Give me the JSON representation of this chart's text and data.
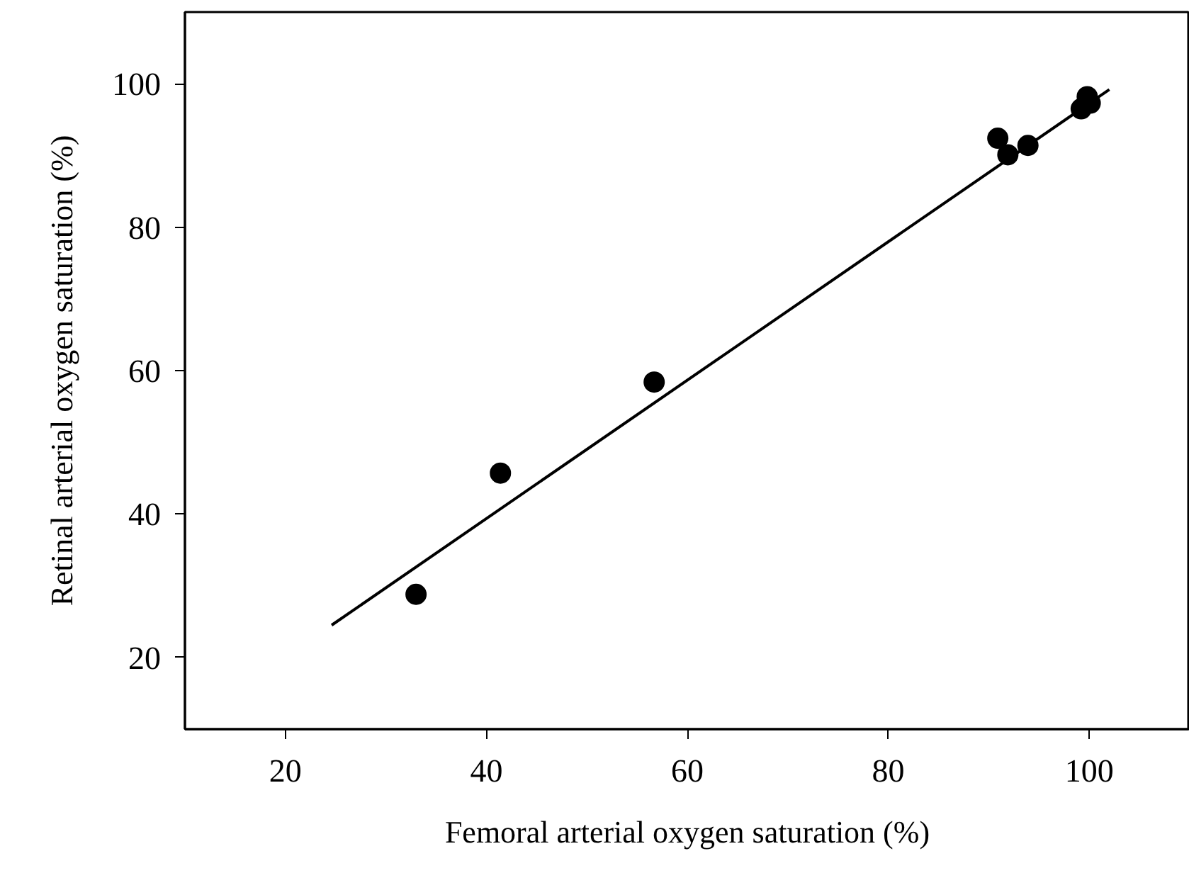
{
  "chart_data": {
    "type": "scatter",
    "xlabel": "Femoral arterial oxygen saturation (%)",
    "ylabel": "Retinal arterial oxygen saturation (%)",
    "xlim": [
      10,
      110
    ],
    "ylim": [
      10,
      110
    ],
    "xticks": [
      20,
      40,
      60,
      80,
      100
    ],
    "yticks": [
      20,
      40,
      60,
      80,
      100
    ],
    "grid": false,
    "series": [
      {
        "marker": "circle",
        "color": "#000000",
        "x": [
          33.0,
          41.4,
          56.7,
          90.9,
          91.9,
          93.9,
          99.2,
          99.8,
          100.1
        ],
        "values": [
          28.8,
          45.7,
          58.4,
          92.4,
          90.1,
          91.4,
          96.5,
          98.2,
          97.3
        ]
      },
      {
        "type": "line",
        "color": "#000000",
        "line_style": "solid",
        "x": [
          24.6,
          102.0
        ],
        "values": [
          24.5,
          99.2
        ]
      }
    ]
  }
}
